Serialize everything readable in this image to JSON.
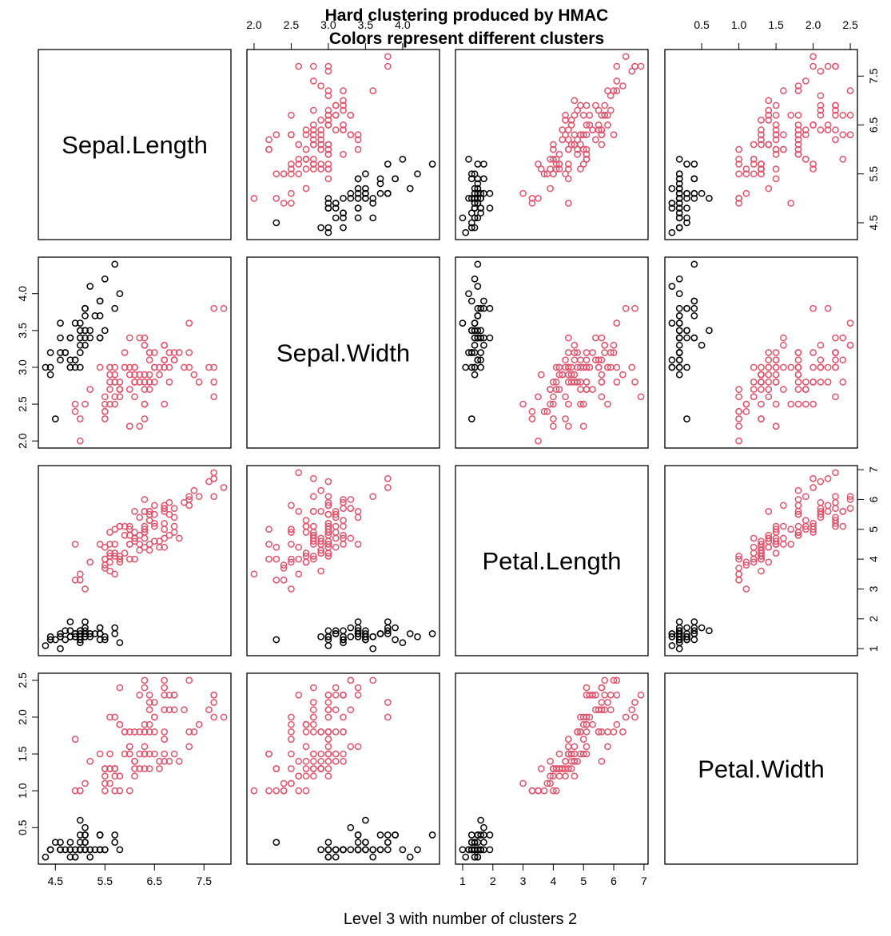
{
  "chart_data": {
    "type": "scatter",
    "title": [
      "Hard clustering produced by HMAC",
      "Colors represent different clusters"
    ],
    "xlabel": "Level 3 with number of clusters 2",
    "variables": [
      "Sepal.Length",
      "Sepal.Width",
      "Petal.Length",
      "Petal.Width"
    ],
    "ranges": [
      [
        4.3,
        7.9
      ],
      [
        2.0,
        4.4
      ],
      [
        1.0,
        6.9
      ],
      [
        0.1,
        2.5
      ]
    ],
    "ticks": [
      [
        4.5,
        5.5,
        6.5,
        7.5
      ],
      [
        2.0,
        2.5,
        3.0,
        3.5,
        4.0
      ],
      [
        1,
        2,
        3,
        4,
        5,
        6,
        7
      ],
      [
        0.5,
        1.0,
        1.5,
        2.0,
        2.5
      ]
    ],
    "tick_labels": [
      [
        "4.5",
        "5.5",
        "6.5",
        "7.5"
      ],
      [
        "2.0",
        "2.5",
        "3.0",
        "3.5",
        "4.0"
      ],
      [
        "1",
        "2",
        "3",
        "4",
        "5",
        "6",
        "7"
      ],
      [
        "0.5",
        "1.0",
        "1.5",
        "2.0",
        "2.5"
      ]
    ],
    "cluster_colors": [
      "#000000",
      "#DF536B"
    ],
    "grid": false,
    "points": [
      [
        5.1,
        3.5,
        1.4,
        0.2,
        1
      ],
      [
        4.9,
        3.0,
        1.4,
        0.2,
        1
      ],
      [
        4.7,
        3.2,
        1.3,
        0.2,
        1
      ],
      [
        4.6,
        3.1,
        1.5,
        0.2,
        1
      ],
      [
        5.0,
        3.6,
        1.4,
        0.2,
        1
      ],
      [
        5.4,
        3.9,
        1.7,
        0.4,
        1
      ],
      [
        4.6,
        3.4,
        1.4,
        0.3,
        1
      ],
      [
        5.0,
        3.4,
        1.5,
        0.2,
        1
      ],
      [
        4.4,
        2.9,
        1.4,
        0.2,
        1
      ],
      [
        4.9,
        3.1,
        1.5,
        0.1,
        1
      ],
      [
        5.4,
        3.7,
        1.5,
        0.2,
        1
      ],
      [
        4.8,
        3.4,
        1.6,
        0.2,
        1
      ],
      [
        4.8,
        3.0,
        1.4,
        0.1,
        1
      ],
      [
        4.3,
        3.0,
        1.1,
        0.1,
        1
      ],
      [
        5.8,
        4.0,
        1.2,
        0.2,
        1
      ],
      [
        5.7,
        4.4,
        1.5,
        0.4,
        1
      ],
      [
        5.4,
        3.9,
        1.3,
        0.4,
        1
      ],
      [
        5.1,
        3.5,
        1.4,
        0.3,
        1
      ],
      [
        5.7,
        3.8,
        1.7,
        0.3,
        1
      ],
      [
        5.1,
        3.8,
        1.5,
        0.3,
        1
      ],
      [
        5.4,
        3.4,
        1.7,
        0.2,
        1
      ],
      [
        5.1,
        3.7,
        1.5,
        0.4,
        1
      ],
      [
        4.6,
        3.6,
        1.0,
        0.2,
        1
      ],
      [
        5.1,
        3.3,
        1.7,
        0.5,
        1
      ],
      [
        4.8,
        3.4,
        1.9,
        0.2,
        1
      ],
      [
        5.0,
        3.0,
        1.6,
        0.2,
        1
      ],
      [
        5.0,
        3.4,
        1.6,
        0.4,
        1
      ],
      [
        5.2,
        3.5,
        1.5,
        0.2,
        1
      ],
      [
        5.2,
        3.4,
        1.4,
        0.2,
        1
      ],
      [
        4.7,
        3.2,
        1.6,
        0.2,
        1
      ],
      [
        4.8,
        3.1,
        1.6,
        0.2,
        1
      ],
      [
        5.4,
        3.4,
        1.5,
        0.4,
        1
      ],
      [
        5.2,
        4.1,
        1.5,
        0.1,
        1
      ],
      [
        5.5,
        4.2,
        1.4,
        0.2,
        1
      ],
      [
        4.9,
        3.1,
        1.5,
        0.2,
        1
      ],
      [
        5.0,
        3.2,
        1.2,
        0.2,
        1
      ],
      [
        5.5,
        3.5,
        1.3,
        0.2,
        1
      ],
      [
        4.9,
        3.6,
        1.4,
        0.1,
        1
      ],
      [
        4.4,
        3.0,
        1.3,
        0.2,
        1
      ],
      [
        5.1,
        3.4,
        1.5,
        0.2,
        1
      ],
      [
        5.0,
        3.5,
        1.3,
        0.3,
        1
      ],
      [
        4.5,
        2.3,
        1.3,
        0.3,
        1
      ],
      [
        4.4,
        3.2,
        1.3,
        0.2,
        1
      ],
      [
        5.0,
        3.5,
        1.6,
        0.6,
        1
      ],
      [
        5.1,
        3.8,
        1.9,
        0.4,
        1
      ],
      [
        4.8,
        3.0,
        1.4,
        0.3,
        1
      ],
      [
        5.1,
        3.8,
        1.6,
        0.2,
        1
      ],
      [
        4.6,
        3.2,
        1.4,
        0.2,
        1
      ],
      [
        5.3,
        3.7,
        1.5,
        0.2,
        1
      ],
      [
        5.0,
        3.3,
        1.4,
        0.2,
        1
      ],
      [
        7.0,
        3.2,
        4.7,
        1.4,
        2
      ],
      [
        6.4,
        3.2,
        4.5,
        1.5,
        2
      ],
      [
        6.9,
        3.1,
        4.9,
        1.5,
        2
      ],
      [
        5.5,
        2.3,
        4.0,
        1.3,
        2
      ],
      [
        6.5,
        2.8,
        4.6,
        1.5,
        2
      ],
      [
        5.7,
        2.8,
        4.5,
        1.3,
        2
      ],
      [
        6.3,
        3.3,
        4.7,
        1.6,
        2
      ],
      [
        4.9,
        2.4,
        3.3,
        1.0,
        2
      ],
      [
        6.6,
        2.9,
        4.6,
        1.3,
        2
      ],
      [
        5.2,
        2.7,
        3.9,
        1.4,
        2
      ],
      [
        5.0,
        2.0,
        3.5,
        1.0,
        2
      ],
      [
        5.9,
        3.0,
        4.2,
        1.5,
        2
      ],
      [
        6.0,
        2.2,
        4.0,
        1.0,
        2
      ],
      [
        6.1,
        2.9,
        4.7,
        1.4,
        2
      ],
      [
        5.6,
        2.9,
        3.6,
        1.3,
        2
      ],
      [
        6.7,
        3.1,
        4.4,
        1.4,
        2
      ],
      [
        5.6,
        3.0,
        4.5,
        1.5,
        2
      ],
      [
        5.8,
        2.7,
        4.1,
        1.0,
        2
      ],
      [
        6.2,
        2.2,
        4.5,
        1.5,
        2
      ],
      [
        5.6,
        2.5,
        3.9,
        1.1,
        2
      ],
      [
        5.9,
        3.2,
        4.8,
        1.8,
        2
      ],
      [
        6.1,
        2.8,
        4.0,
        1.3,
        2
      ],
      [
        6.3,
        2.5,
        4.9,
        1.5,
        2
      ],
      [
        6.1,
        2.8,
        4.7,
        1.2,
        2
      ],
      [
        6.4,
        2.9,
        4.3,
        1.3,
        2
      ],
      [
        6.6,
        3.0,
        4.4,
        1.4,
        2
      ],
      [
        6.8,
        2.8,
        4.8,
        1.4,
        2
      ],
      [
        6.7,
        3.0,
        5.0,
        1.7,
        2
      ],
      [
        6.0,
        2.9,
        4.5,
        1.5,
        2
      ],
      [
        5.7,
        2.6,
        3.5,
        1.0,
        2
      ],
      [
        5.5,
        2.4,
        3.8,
        1.1,
        2
      ],
      [
        5.5,
        2.4,
        3.7,
        1.0,
        2
      ],
      [
        5.8,
        2.7,
        3.9,
        1.2,
        2
      ],
      [
        6.0,
        2.7,
        5.1,
        1.6,
        2
      ],
      [
        5.4,
        3.0,
        4.5,
        1.5,
        2
      ],
      [
        6.0,
        3.4,
        4.5,
        1.6,
        2
      ],
      [
        6.7,
        3.1,
        4.7,
        1.5,
        2
      ],
      [
        6.3,
        2.3,
        4.4,
        1.3,
        2
      ],
      [
        5.6,
        3.0,
        4.1,
        1.3,
        2
      ],
      [
        5.5,
        2.5,
        4.0,
        1.3,
        2
      ],
      [
        5.5,
        2.6,
        4.4,
        1.2,
        2
      ],
      [
        6.1,
        3.0,
        4.6,
        1.4,
        2
      ],
      [
        5.8,
        2.6,
        4.0,
        1.2,
        2
      ],
      [
        5.0,
        2.3,
        3.3,
        1.0,
        2
      ],
      [
        5.6,
        2.7,
        4.2,
        1.3,
        2
      ],
      [
        5.7,
        3.0,
        4.2,
        1.2,
        2
      ],
      [
        5.7,
        2.9,
        4.2,
        1.3,
        2
      ],
      [
        6.2,
        2.9,
        4.3,
        1.3,
        2
      ],
      [
        5.1,
        2.5,
        3.0,
        1.1,
        2
      ],
      [
        5.7,
        2.8,
        4.1,
        1.3,
        2
      ],
      [
        6.3,
        3.3,
        6.0,
        2.5,
        2
      ],
      [
        5.8,
        2.7,
        5.1,
        1.9,
        2
      ],
      [
        7.1,
        3.0,
        5.9,
        2.1,
        2
      ],
      [
        6.3,
        2.9,
        5.6,
        1.8,
        2
      ],
      [
        6.5,
        3.0,
        5.8,
        2.2,
        2
      ],
      [
        7.6,
        3.0,
        6.6,
        2.1,
        2
      ],
      [
        4.9,
        2.5,
        4.5,
        1.7,
        2
      ],
      [
        7.3,
        2.9,
        6.3,
        1.8,
        2
      ],
      [
        6.7,
        2.5,
        5.8,
        1.8,
        2
      ],
      [
        7.2,
        3.6,
        6.1,
        2.5,
        2
      ],
      [
        6.5,
        3.2,
        5.1,
        2.0,
        2
      ],
      [
        6.4,
        2.7,
        5.3,
        1.9,
        2
      ],
      [
        6.8,
        3.0,
        5.5,
        2.1,
        2
      ],
      [
        5.7,
        2.5,
        5.0,
        2.0,
        2
      ],
      [
        5.8,
        2.8,
        5.1,
        2.4,
        2
      ],
      [
        6.4,
        3.2,
        5.3,
        2.3,
        2
      ],
      [
        6.5,
        3.0,
        5.5,
        1.8,
        2
      ],
      [
        7.7,
        3.8,
        6.7,
        2.2,
        2
      ],
      [
        7.7,
        2.6,
        6.9,
        2.3,
        2
      ],
      [
        6.0,
        2.2,
        5.0,
        1.5,
        2
      ],
      [
        6.9,
        3.2,
        5.7,
        2.3,
        2
      ],
      [
        5.6,
        2.8,
        4.9,
        2.0,
        2
      ],
      [
        7.7,
        2.8,
        6.7,
        2.0,
        2
      ],
      [
        6.3,
        2.7,
        4.9,
        1.8,
        2
      ],
      [
        6.7,
        3.3,
        5.7,
        2.1,
        2
      ],
      [
        7.2,
        3.2,
        6.0,
        1.8,
        2
      ],
      [
        6.2,
        2.8,
        4.8,
        1.8,
        2
      ],
      [
        6.1,
        3.0,
        4.9,
        1.8,
        2
      ],
      [
        6.4,
        2.8,
        5.6,
        2.1,
        2
      ],
      [
        7.2,
        3.0,
        5.8,
        1.6,
        2
      ],
      [
        7.4,
        2.8,
        6.1,
        1.9,
        2
      ],
      [
        7.9,
        3.8,
        6.4,
        2.0,
        2
      ],
      [
        6.4,
        2.8,
        5.6,
        2.2,
        2
      ],
      [
        6.3,
        2.8,
        5.1,
        1.5,
        2
      ],
      [
        6.1,
        2.6,
        5.6,
        1.4,
        2
      ],
      [
        7.7,
        3.0,
        6.1,
        2.3,
        2
      ],
      [
        6.3,
        3.4,
        5.6,
        2.4,
        2
      ],
      [
        6.4,
        3.1,
        5.5,
        1.8,
        2
      ],
      [
        6.0,
        3.0,
        4.8,
        1.8,
        2
      ],
      [
        6.9,
        3.1,
        5.4,
        2.1,
        2
      ],
      [
        6.7,
        3.1,
        5.6,
        2.4,
        2
      ],
      [
        6.9,
        3.1,
        5.1,
        2.3,
        2
      ],
      [
        5.8,
        2.7,
        5.1,
        1.9,
        2
      ],
      [
        6.8,
        3.2,
        5.9,
        2.3,
        2
      ],
      [
        6.7,
        3.3,
        5.7,
        2.5,
        2
      ],
      [
        6.7,
        3.0,
        5.2,
        2.3,
        2
      ],
      [
        6.3,
        2.5,
        5.0,
        1.9,
        2
      ],
      [
        6.5,
        3.0,
        5.2,
        2.0,
        2
      ],
      [
        6.2,
        3.4,
        5.4,
        2.3,
        2
      ],
      [
        5.9,
        3.0,
        5.1,
        1.8,
        2
      ]
    ]
  }
}
